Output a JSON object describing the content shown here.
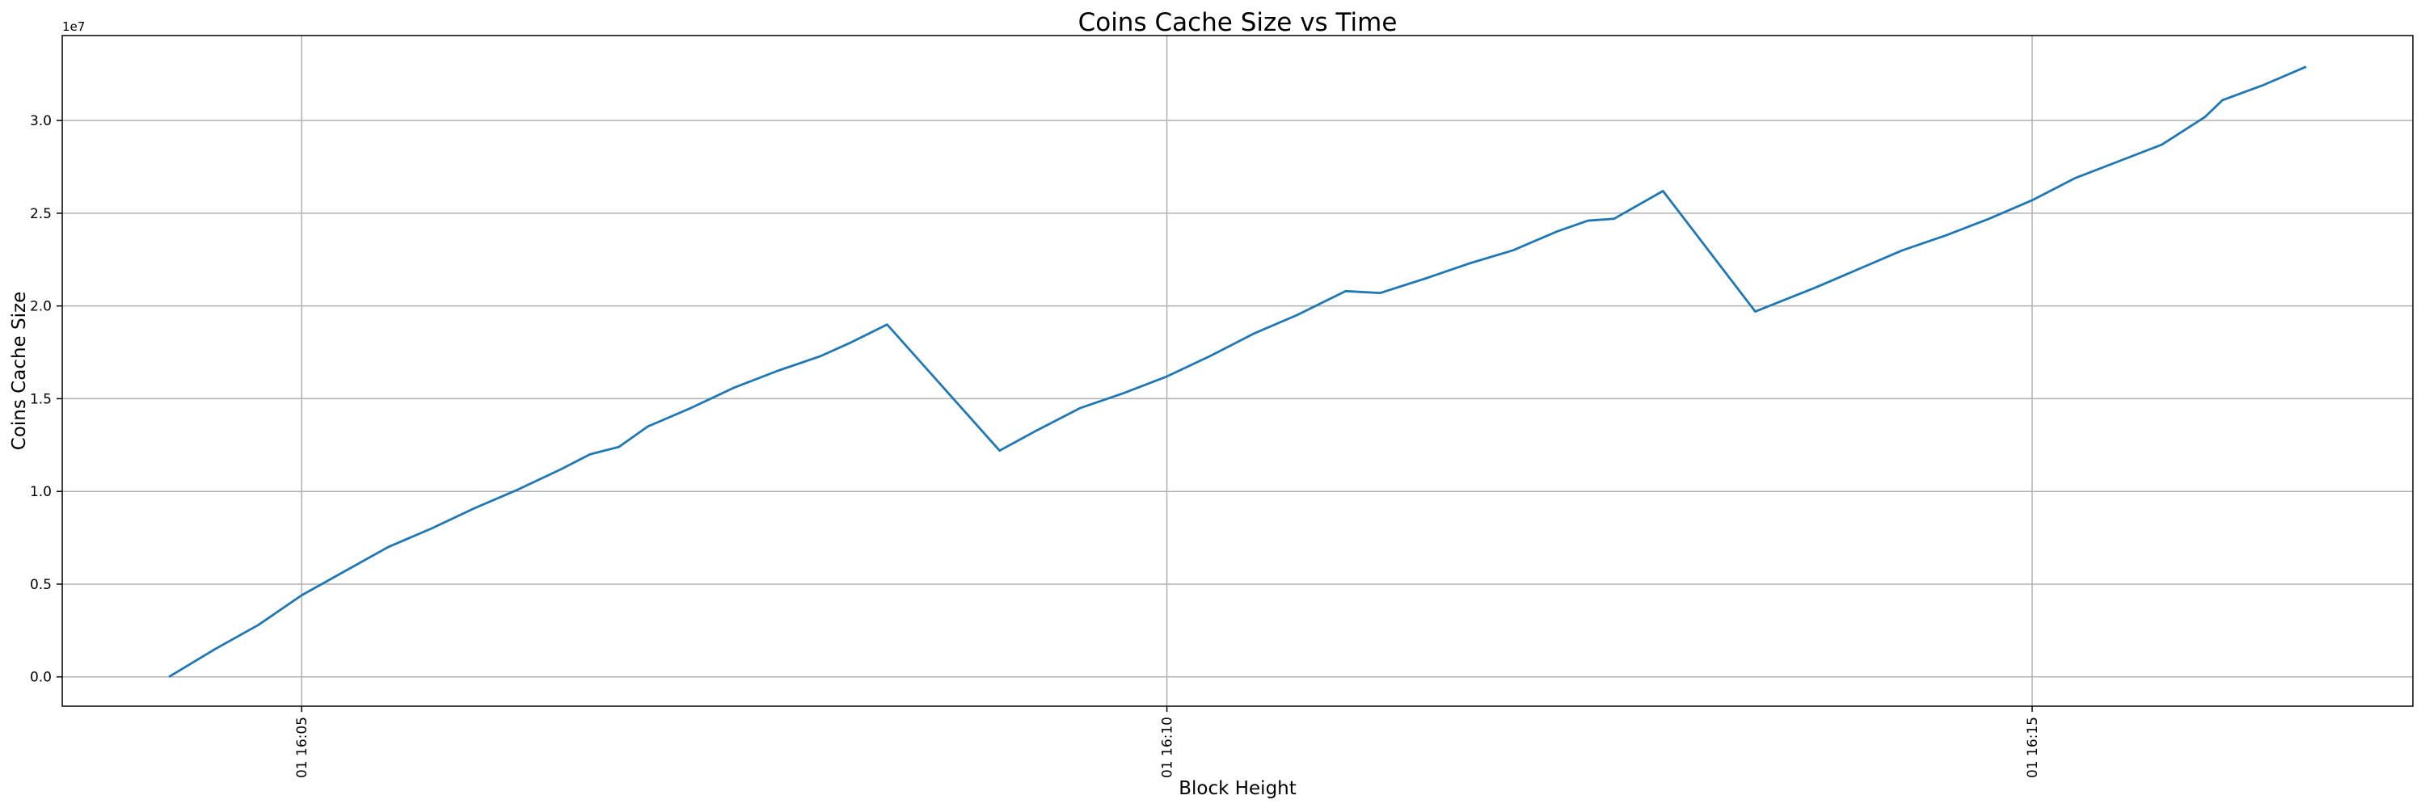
{
  "chart_data": {
    "type": "line",
    "title": "Coins Cache Size vs Time",
    "x_label": "Block Height",
    "y_label": "Coins Cache Size",
    "y_offset_text": "1e7",
    "grid": true,
    "color": "#1f77b4",
    "xlim": [
      "01 16:03:37",
      "01 16:17:12"
    ],
    "xticks": [
      "01 16:05",
      "01 16:10",
      "01 16:15"
    ],
    "ylim": [
      -1580000,
      34580000
    ],
    "yticks": [
      {
        "value": 0,
        "label": "0.0"
      },
      {
        "value": 5000000,
        "label": "0.5"
      },
      {
        "value": 10000000,
        "label": "1.0"
      },
      {
        "value": 15000000,
        "label": "1.5"
      },
      {
        "value": 20000000,
        "label": "2.0"
      },
      {
        "value": 25000000,
        "label": "2.5"
      },
      {
        "value": 30000000,
        "label": "3.0"
      }
    ],
    "x": [
      "01 16:04:14",
      "01 16:04:30",
      "01 16:04:45",
      "01 16:05:00",
      "01 16:05:15",
      "01 16:05:30",
      "01 16:05:45",
      "01 16:06:00",
      "01 16:06:15",
      "01 16:06:30",
      "01 16:06:40",
      "01 16:06:50",
      "01 16:07:00",
      "01 16:07:15",
      "01 16:07:30",
      "01 16:07:45",
      "01 16:08:00",
      "01 16:08:10",
      "01 16:08:23",
      "01 16:09:02",
      "01 16:09:15",
      "01 16:09:30",
      "01 16:09:45",
      "01 16:10:00",
      "01 16:10:15",
      "01 16:10:30",
      "01 16:10:45",
      "01 16:11:02",
      "01 16:11:14",
      "01 16:11:30",
      "01 16:11:45",
      "01 16:12:00",
      "01 16:12:15",
      "01 16:12:26",
      "01 16:12:35",
      "01 16:12:52",
      "01 16:13:24",
      "01 16:13:45",
      "01 16:14:00",
      "01 16:14:15",
      "01 16:14:30",
      "01 16:14:45",
      "01 16:15:00",
      "01 16:15:15",
      "01 16:15:30",
      "01 16:15:45",
      "01 16:16:00",
      "01 16:16:06",
      "01 16:16:20",
      "01 16:16:35"
    ],
    "values": [
      0,
      1500000,
      2800000,
      4400000,
      5700000,
      7000000,
      8000000,
      9100000,
      10100000,
      11200000,
      12000000,
      12400000,
      13500000,
      14500000,
      15600000,
      16500000,
      17300000,
      18000000,
      19000000,
      12200000,
      13300000,
      14500000,
      15300000,
      16200000,
      17300000,
      18500000,
      19500000,
      20800000,
      20700000,
      21500000,
      22300000,
      23000000,
      24000000,
      24600000,
      24700000,
      26200000,
      19700000,
      21000000,
      22000000,
      23000000,
      23800000,
      24700000,
      25700000,
      26900000,
      27800000,
      28700000,
      30200000,
      31100000,
      31900000,
      32900000
    ]
  }
}
